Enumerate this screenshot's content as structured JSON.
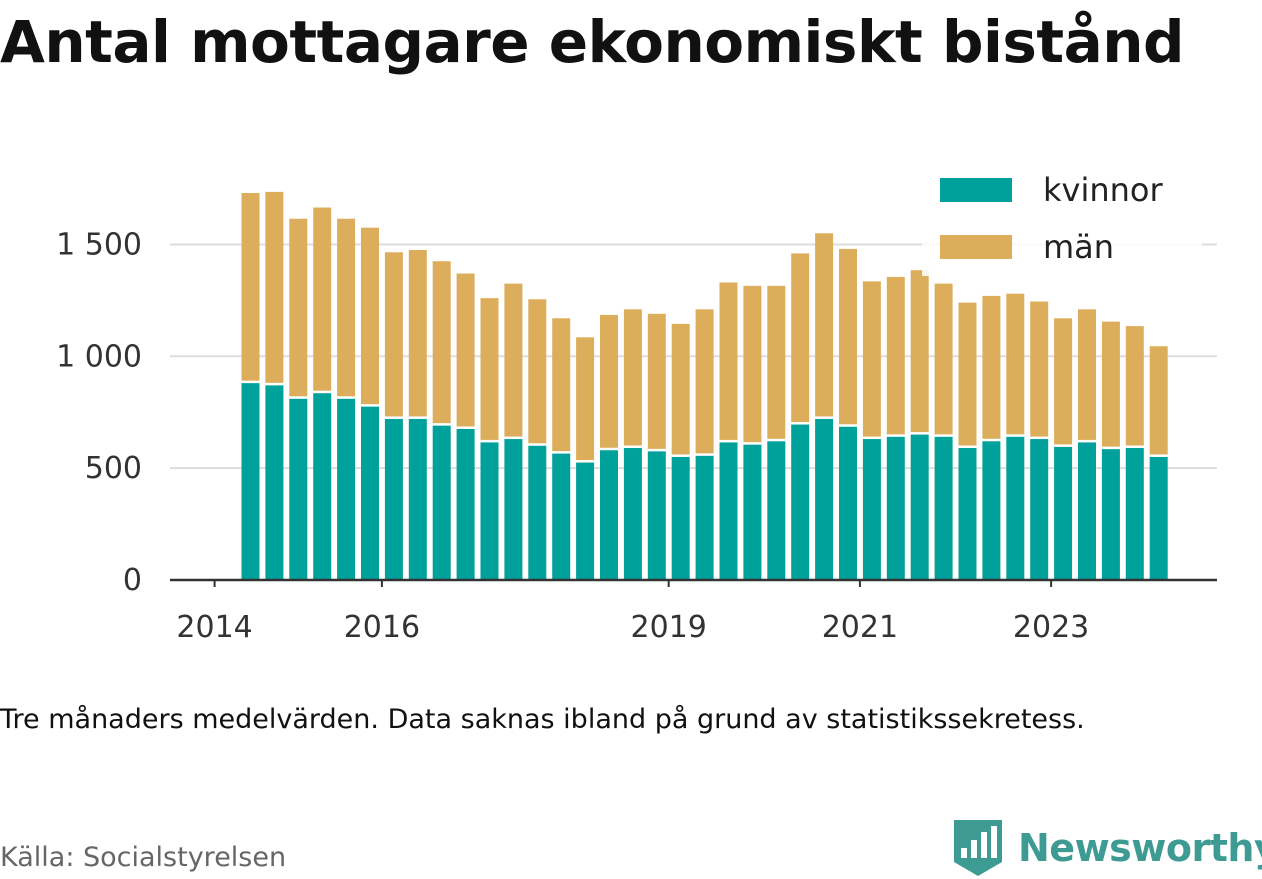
{
  "title": "Antal mottagare ekonomiskt bistånd",
  "note": "Tre månaders medelvärden. Data saknas ibland på grund av statistikssekretess.",
  "source": "Källa: Socialstyrelsen",
  "brand": {
    "name": "Newsworthy",
    "icon": "newsworthy-logo-icon",
    "color": "#3d9b94"
  },
  "colors": {
    "kvinnor": "#00a19a",
    "man": "#dcae5c",
    "grid": "#dddddd",
    "axis": "#333333"
  },
  "chart_data": {
    "type": "bar",
    "stacked": true,
    "x_ticks": [
      {
        "label": "2014",
        "index": -1
      },
      {
        "label": "2016",
        "index": 6
      },
      {
        "label": "2019",
        "index": 18
      },
      {
        "label": "2021",
        "index": 26
      },
      {
        "label": "2023",
        "index": 34
      }
    ],
    "y_ticks": [
      0,
      500,
      1000,
      1500
    ],
    "y_tick_labels": [
      "0",
      "500",
      "1 000",
      "1 500"
    ],
    "ylim": [
      0,
      1800
    ],
    "grid": true,
    "legend_position": "top-right",
    "series": [
      {
        "name": "kvinnor",
        "values": [
          880,
          870,
          810,
          835,
          810,
          775,
          720,
          720,
          690,
          675,
          615,
          630,
          600,
          565,
          525,
          580,
          590,
          575,
          550,
          555,
          615,
          605,
          620,
          695,
          720,
          685,
          630,
          640,
          650,
          640,
          590,
          620,
          640,
          630,
          595,
          615,
          585,
          590,
          550
        ]
      },
      {
        "name": "män",
        "values": [
          850,
          865,
          805,
          830,
          805,
          800,
          745,
          755,
          735,
          695,
          645,
          695,
          655,
          605,
          560,
          605,
          620,
          615,
          595,
          655,
          715,
          710,
          695,
          765,
          830,
          795,
          705,
          715,
          735,
          685,
          650,
          650,
          640,
          615,
          575,
          595,
          570,
          545,
          495
        ]
      }
    ]
  }
}
